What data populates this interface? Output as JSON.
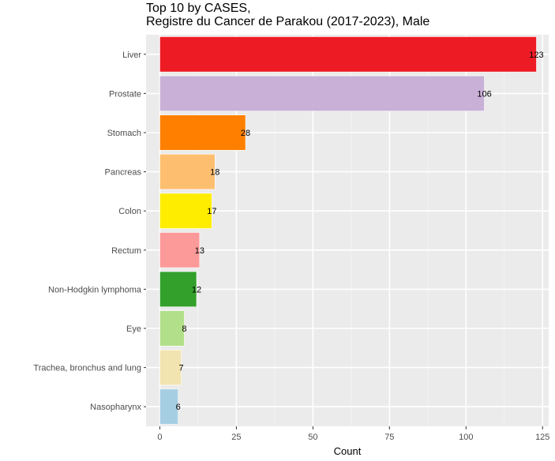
{
  "chart_data": {
    "type": "bar",
    "orientation": "horizontal",
    "title_line1": "Top 10 by CASES,",
    "title_line2": "Registre du Cancer de Parakou (2017-2023), Male",
    "xlabel": "Count",
    "ylabel": "",
    "xlim": [
      0,
      127
    ],
    "xticks": [
      0,
      25,
      50,
      75,
      100,
      125
    ],
    "grid": true,
    "categories": [
      "Liver",
      "Prostate",
      "Stomach",
      "Pancreas",
      "Colon",
      "Rectum",
      "Non-Hodgkin lymphoma",
      "Eye",
      "Trachea, bronchus and lung",
      "Nasopharynx"
    ],
    "values": [
      123,
      106,
      28,
      18,
      17,
      13,
      12,
      8,
      7,
      6
    ],
    "colors": [
      "#ED1C24",
      "#C8B0D6",
      "#FF7F00",
      "#FDBF6F",
      "#FFED00",
      "#FB9A99",
      "#33A02C",
      "#B2DF8A",
      "#F2E4B0",
      "#A6CEE3"
    ]
  },
  "style": {
    "panel_bg": "#EBEBEB",
    "grid_major": "#FFFFFF",
    "grid_minor": "#F5F5F5"
  }
}
